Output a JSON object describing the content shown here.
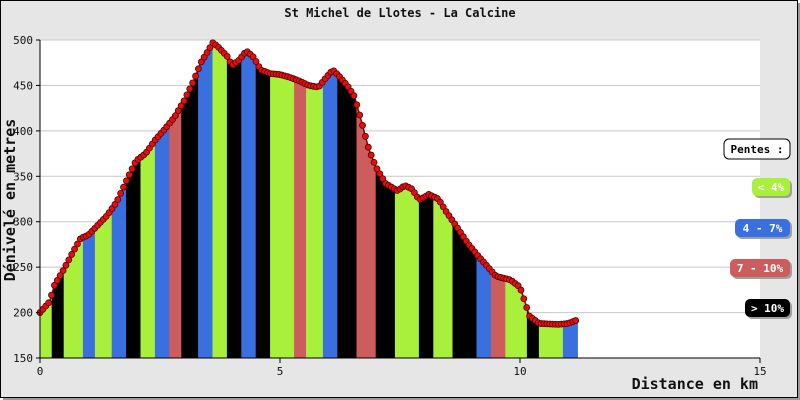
{
  "chart_data": {
    "type": "area",
    "title": "St Michel de Llotes - La Calcine",
    "xlabel": "Distance en km",
    "ylabel": "Dénivelé en metres",
    "xlim": [
      0,
      15
    ],
    "ylim": [
      150,
      500
    ],
    "x_ticks": [
      "0",
      "5",
      "10",
      "15"
    ],
    "y_ticks": [
      "150",
      "200",
      "250",
      "300",
      "350",
      "400",
      "450",
      "500"
    ],
    "grid": "horizontal",
    "legend_placement": "right",
    "legend_title": "Pentes :",
    "legend": [
      {
        "label": "< 4%",
        "color": "#a9f03c",
        "text_color": "#ffffff"
      },
      {
        "label": "4 - 7%",
        "color": "#3a6fe0",
        "text_color": "#ffffff"
      },
      {
        "label": "7 - 10%",
        "color": "#cd5c5c",
        "text_color": "#ffffff"
      },
      {
        "label": "> 10%",
        "color": "#000000",
        "text_color": "#ffffff"
      }
    ],
    "line_color": "#ff0000",
    "series": [
      {
        "x": [
          0,
          0.2,
          0.3,
          0.5,
          0.7,
          0.85,
          1.0,
          1.2,
          1.4,
          1.6,
          1.8,
          2.0,
          2.2,
          2.4,
          2.6,
          2.8,
          3.0,
          3.2,
          3.35,
          3.5,
          3.6,
          3.7,
          3.9,
          4.0,
          4.15,
          4.3,
          4.45,
          4.6,
          4.8,
          5.0,
          5.2,
          5.4,
          5.6,
          5.8,
          5.95,
          6.1,
          6.2,
          6.4,
          6.55,
          6.7,
          6.85,
          7.0,
          7.2,
          7.45,
          7.6,
          7.75,
          7.9,
          8.1,
          8.3,
          8.45,
          8.7,
          8.9,
          9.1,
          9.3,
          9.5,
          9.8,
          10.0,
          10.2,
          10.4,
          10.8,
          11.0,
          11.2
        ],
        "y": [
          200,
          212,
          230,
          248,
          268,
          282,
          285,
          296,
          307,
          322,
          345,
          367,
          375,
          390,
          402,
          415,
          433,
          455,
          475,
          488,
          497,
          493,
          482,
          472,
          478,
          488,
          481,
          467,
          463,
          462,
          459,
          455,
          450,
          448,
          458,
          467,
          462,
          450,
          438,
          410,
          380,
          360,
          342,
          334,
          340,
          336,
          324,
          330,
          325,
          312,
          293,
          277,
          264,
          252,
          240,
          236,
          228,
          196,
          188,
          187,
          188,
          192
        ]
      }
    ],
    "slope_bands": [
      {
        "from": 0.0,
        "to": 0.25,
        "class": "lt4"
      },
      {
        "from": 0.25,
        "to": 0.5,
        "class": "gt10"
      },
      {
        "from": 0.5,
        "to": 0.9,
        "class": "lt4"
      },
      {
        "from": 0.9,
        "to": 1.15,
        "class": "4to7"
      },
      {
        "from": 1.15,
        "to": 1.5,
        "class": "lt4"
      },
      {
        "from": 1.5,
        "to": 1.8,
        "class": "4to7"
      },
      {
        "from": 1.8,
        "to": 2.1,
        "class": "gt10"
      },
      {
        "from": 2.1,
        "to": 2.4,
        "class": "lt4"
      },
      {
        "from": 2.4,
        "to": 2.7,
        "class": "4to7"
      },
      {
        "from": 2.7,
        "to": 2.95,
        "class": "7to10"
      },
      {
        "from": 2.95,
        "to": 3.3,
        "class": "gt10"
      },
      {
        "from": 3.3,
        "to": 3.6,
        "class": "4to7"
      },
      {
        "from": 3.6,
        "to": 3.9,
        "class": "lt4"
      },
      {
        "from": 3.9,
        "to": 4.2,
        "class": "gt10"
      },
      {
        "from": 4.2,
        "to": 4.5,
        "class": "4to7"
      },
      {
        "from": 4.5,
        "to": 4.8,
        "class": "gt10"
      },
      {
        "from": 4.8,
        "to": 5.3,
        "class": "lt4"
      },
      {
        "from": 5.3,
        "to": 5.55,
        "class": "7to10"
      },
      {
        "from": 5.55,
        "to": 5.9,
        "class": "lt4"
      },
      {
        "from": 5.9,
        "to": 6.2,
        "class": "4to7"
      },
      {
        "from": 6.2,
        "to": 6.6,
        "class": "gt10"
      },
      {
        "from": 6.6,
        "to": 7.0,
        "class": "7to10"
      },
      {
        "from": 7.0,
        "to": 7.4,
        "class": "gt10"
      },
      {
        "from": 7.4,
        "to": 7.9,
        "class": "lt4"
      },
      {
        "from": 7.9,
        "to": 8.2,
        "class": "gt10"
      },
      {
        "from": 8.2,
        "to": 8.6,
        "class": "lt4"
      },
      {
        "from": 8.6,
        "to": 9.1,
        "class": "gt10"
      },
      {
        "from": 9.1,
        "to": 9.4,
        "class": "4to7"
      },
      {
        "from": 9.4,
        "to": 9.7,
        "class": "7to10"
      },
      {
        "from": 9.7,
        "to": 10.15,
        "class": "lt4"
      },
      {
        "from": 10.15,
        "to": 10.4,
        "class": "gt10"
      },
      {
        "from": 10.4,
        "to": 10.9,
        "class": "lt4"
      },
      {
        "from": 10.9,
        "to": 11.2,
        "class": "4to7"
      }
    ],
    "band_colors": {
      "lt4": "#a9f03c",
      "4to7": "#3a6fe0",
      "7to10": "#cd5c5c",
      "gt10": "#000000"
    }
  }
}
